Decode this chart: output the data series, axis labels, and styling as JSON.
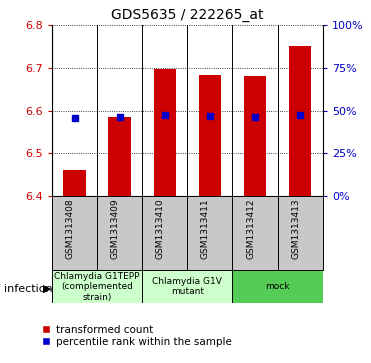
{
  "title": "GDS5635 / 222265_at",
  "samples": [
    "GSM1313408",
    "GSM1313409",
    "GSM1313410",
    "GSM1313411",
    "GSM1313412",
    "GSM1313413"
  ],
  "bar_bottom": 6.4,
  "bar_tops": [
    6.462,
    6.585,
    6.697,
    6.683,
    6.682,
    6.752
  ],
  "percentile_values": [
    6.583,
    6.585,
    6.59,
    6.588,
    6.586,
    6.589
  ],
  "ylim": [
    6.4,
    6.8
  ],
  "yticks_left": [
    6.4,
    6.5,
    6.6,
    6.7,
    6.8
  ],
  "yticks_right": [
    0,
    25,
    50,
    75,
    100
  ],
  "bar_color": "#cc0000",
  "square_color": "#0000cc",
  "bar_width": 0.5,
  "groups": [
    {
      "label": "Chlamydia G1TEPP\n(complemented\nstrain)",
      "indices": [
        0,
        1
      ],
      "color": "#ccffcc"
    },
    {
      "label": "Chlamydia G1V\nmutant",
      "indices": [
        2,
        3
      ],
      "color": "#ccffcc"
    },
    {
      "label": "mock",
      "indices": [
        4,
        5
      ],
      "color": "#55cc55"
    }
  ],
  "infection_label": "infection",
  "legend_red": "transformed count",
  "legend_blue": "percentile rank within the sample",
  "tick_label_color_left": "#cc0000",
  "tick_label_color_right": "#0000cc",
  "label_bg_color": "#c8c8c8",
  "group1_color": "#ccffcc",
  "group2_color": "#55cc55"
}
